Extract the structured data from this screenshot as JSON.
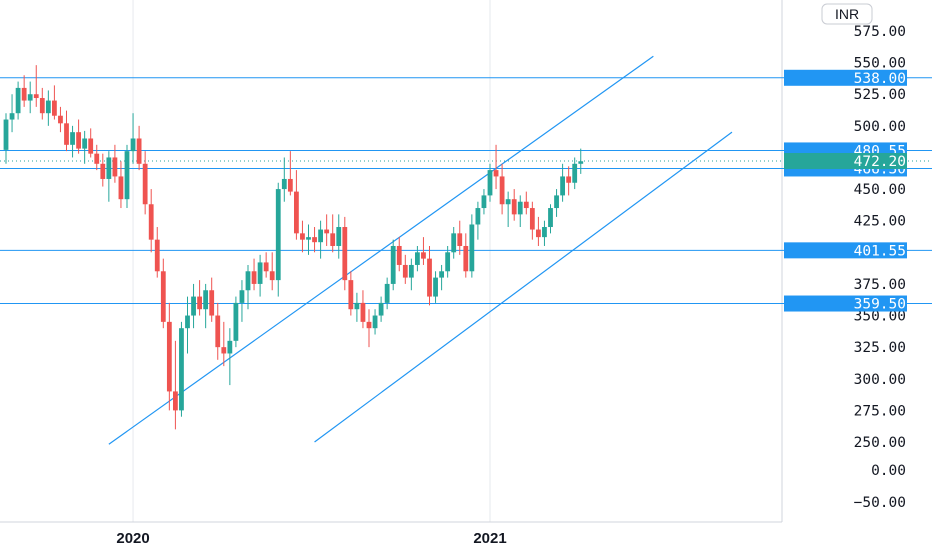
{
  "currency_label": "INR",
  "colors": {
    "up": "#26a69a",
    "down": "#ef5350",
    "line": "#2196f3",
    "tag": "#2196f3",
    "last_price": "#26a69a",
    "grid": "#e6e9ee",
    "text": "#131722"
  },
  "chart_data": {
    "type": "candlestick",
    "title": "",
    "ylim": [
      -75,
      590
    ],
    "y_ticks": [
      575,
      550,
      525,
      500,
      450,
      425,
      375,
      350,
      325,
      300,
      275,
      250,
      0,
      -50
    ],
    "y_tick_labels": [
      "575.00",
      "550.00",
      "525.00",
      "500.00",
      "450.00",
      "425.00",
      "375.00",
      "350.00",
      "325.00",
      "300.00",
      "275.00",
      "250.00",
      "0.00",
      "−50.00"
    ],
    "x_tick_labels": [
      {
        "label": "2020",
        "week_index": 21
      },
      {
        "label": "2021",
        "week_index": 80
      }
    ],
    "horizontal_levels": [
      {
        "value": 538.0,
        "label": "538.00"
      },
      {
        "value": 480.55,
        "label": "480.55"
      },
      {
        "value": 466.3,
        "label": "466.30"
      },
      {
        "value": 401.55,
        "label": "401.55"
      },
      {
        "value": 359.5,
        "label": "359.50"
      }
    ],
    "last_price": {
      "value": 472.2,
      "label": "472.20"
    },
    "trendlines": [
      {
        "from": {
          "week_index": 17,
          "value": 230
        },
        "to": {
          "week_index": 107,
          "value": 555
        }
      },
      {
        "from": {
          "week_index": 51,
          "value": 250
        },
        "to": {
          "week_index": 120,
          "value": 495
        }
      }
    ],
    "candles": [
      [
        481,
        510,
        470,
        505
      ],
      [
        505,
        525,
        495,
        510
      ],
      [
        510,
        535,
        505,
        530
      ],
      [
        530,
        540,
        515,
        520
      ],
      [
        520,
        535,
        510,
        525
      ],
      [
        525,
        548,
        515,
        522
      ],
      [
        522,
        530,
        505,
        510
      ],
      [
        510,
        528,
        500,
        520
      ],
      [
        520,
        532,
        505,
        508
      ],
      [
        508,
        515,
        495,
        502
      ],
      [
        502,
        512,
        480,
        485
      ],
      [
        485,
        500,
        475,
        495
      ],
      [
        495,
        505,
        478,
        482
      ],
      [
        482,
        496,
        470,
        490
      ],
      [
        490,
        498,
        475,
        478
      ],
      [
        478,
        485,
        465,
        470
      ],
      [
        470,
        478,
        452,
        458
      ],
      [
        458,
        480,
        440,
        475
      ],
      [
        475,
        485,
        455,
        460
      ],
      [
        460,
        472,
        435,
        442
      ],
      [
        442,
        485,
        435,
        480
      ],
      [
        480,
        510,
        470,
        490
      ],
      [
        490,
        500,
        465,
        470
      ],
      [
        470,
        480,
        430,
        438
      ],
      [
        438,
        450,
        400,
        410
      ],
      [
        410,
        420,
        380,
        385
      ],
      [
        385,
        395,
        340,
        345
      ],
      [
        345,
        360,
        275,
        290
      ],
      [
        290,
        330,
        260,
        275
      ],
      [
        275,
        345,
        270,
        340
      ],
      [
        340,
        365,
        320,
        350
      ],
      [
        350,
        375,
        340,
        365
      ],
      [
        365,
        378,
        350,
        355
      ],
      [
        355,
        375,
        340,
        370
      ],
      [
        370,
        380,
        345,
        350
      ],
      [
        350,
        360,
        315,
        325
      ],
      [
        325,
        345,
        310,
        320
      ],
      [
        320,
        340,
        295,
        330
      ],
      [
        330,
        365,
        325,
        360
      ],
      [
        360,
        378,
        345,
        370
      ],
      [
        370,
        390,
        355,
        385
      ],
      [
        385,
        395,
        370,
        375
      ],
      [
        375,
        398,
        365,
        392
      ],
      [
        392,
        400,
        380,
        385
      ],
      [
        385,
        400,
        370,
        378
      ],
      [
        378,
        455,
        365,
        450
      ],
      [
        450,
        475,
        440,
        458
      ],
      [
        458,
        480,
        445,
        448
      ],
      [
        448,
        465,
        410,
        415
      ],
      [
        415,
        425,
        400,
        410
      ],
      [
        410,
        422,
        398,
        412
      ],
      [
        412,
        420,
        400,
        408
      ],
      [
        408,
        425,
        395,
        418
      ],
      [
        418,
        430,
        405,
        415
      ],
      [
        415,
        430,
        400,
        405
      ],
      [
        405,
        430,
        395,
        420
      ],
      [
        420,
        428,
        370,
        378
      ],
      [
        378,
        385,
        350,
        355
      ],
      [
        355,
        368,
        345,
        360
      ],
      [
        360,
        370,
        340,
        345
      ],
      [
        345,
        355,
        325,
        340
      ],
      [
        340,
        355,
        335,
        350
      ],
      [
        350,
        365,
        345,
        360
      ],
      [
        360,
        380,
        355,
        375
      ],
      [
        375,
        410,
        370,
        405
      ],
      [
        405,
        412,
        385,
        390
      ],
      [
        390,
        398,
        375,
        380
      ],
      [
        380,
        395,
        370,
        390
      ],
      [
        390,
        405,
        385,
        400
      ],
      [
        400,
        412,
        390,
        395
      ],
      [
        395,
        405,
        358,
        365
      ],
      [
        365,
        385,
        360,
        380
      ],
      [
        380,
        390,
        370,
        385
      ],
      [
        385,
        405,
        380,
        400
      ],
      [
        400,
        420,
        395,
        415
      ],
      [
        415,
        425,
        398,
        405
      ],
      [
        405,
        415,
        380,
        385
      ],
      [
        385,
        430,
        380,
        422
      ],
      [
        422,
        440,
        410,
        435
      ],
      [
        435,
        450,
        430,
        445
      ],
      [
        445,
        470,
        440,
        465
      ],
      [
        465,
        485,
        450,
        460
      ],
      [
        460,
        470,
        430,
        438
      ],
      [
        438,
        448,
        420,
        442
      ],
      [
        442,
        450,
        425,
        430
      ],
      [
        430,
        445,
        420,
        440
      ],
      [
        440,
        448,
        430,
        435
      ],
      [
        435,
        440,
        410,
        418
      ],
      [
        418,
        428,
        405,
        412
      ],
      [
        412,
        425,
        405,
        420
      ],
      [
        420,
        438,
        415,
        435
      ],
      [
        435,
        450,
        428,
        445
      ],
      [
        445,
        470,
        440,
        460
      ],
      [
        460,
        468,
        445,
        455
      ],
      [
        455,
        475,
        450,
        470
      ],
      [
        470,
        482,
        462,
        472
      ]
    ]
  }
}
